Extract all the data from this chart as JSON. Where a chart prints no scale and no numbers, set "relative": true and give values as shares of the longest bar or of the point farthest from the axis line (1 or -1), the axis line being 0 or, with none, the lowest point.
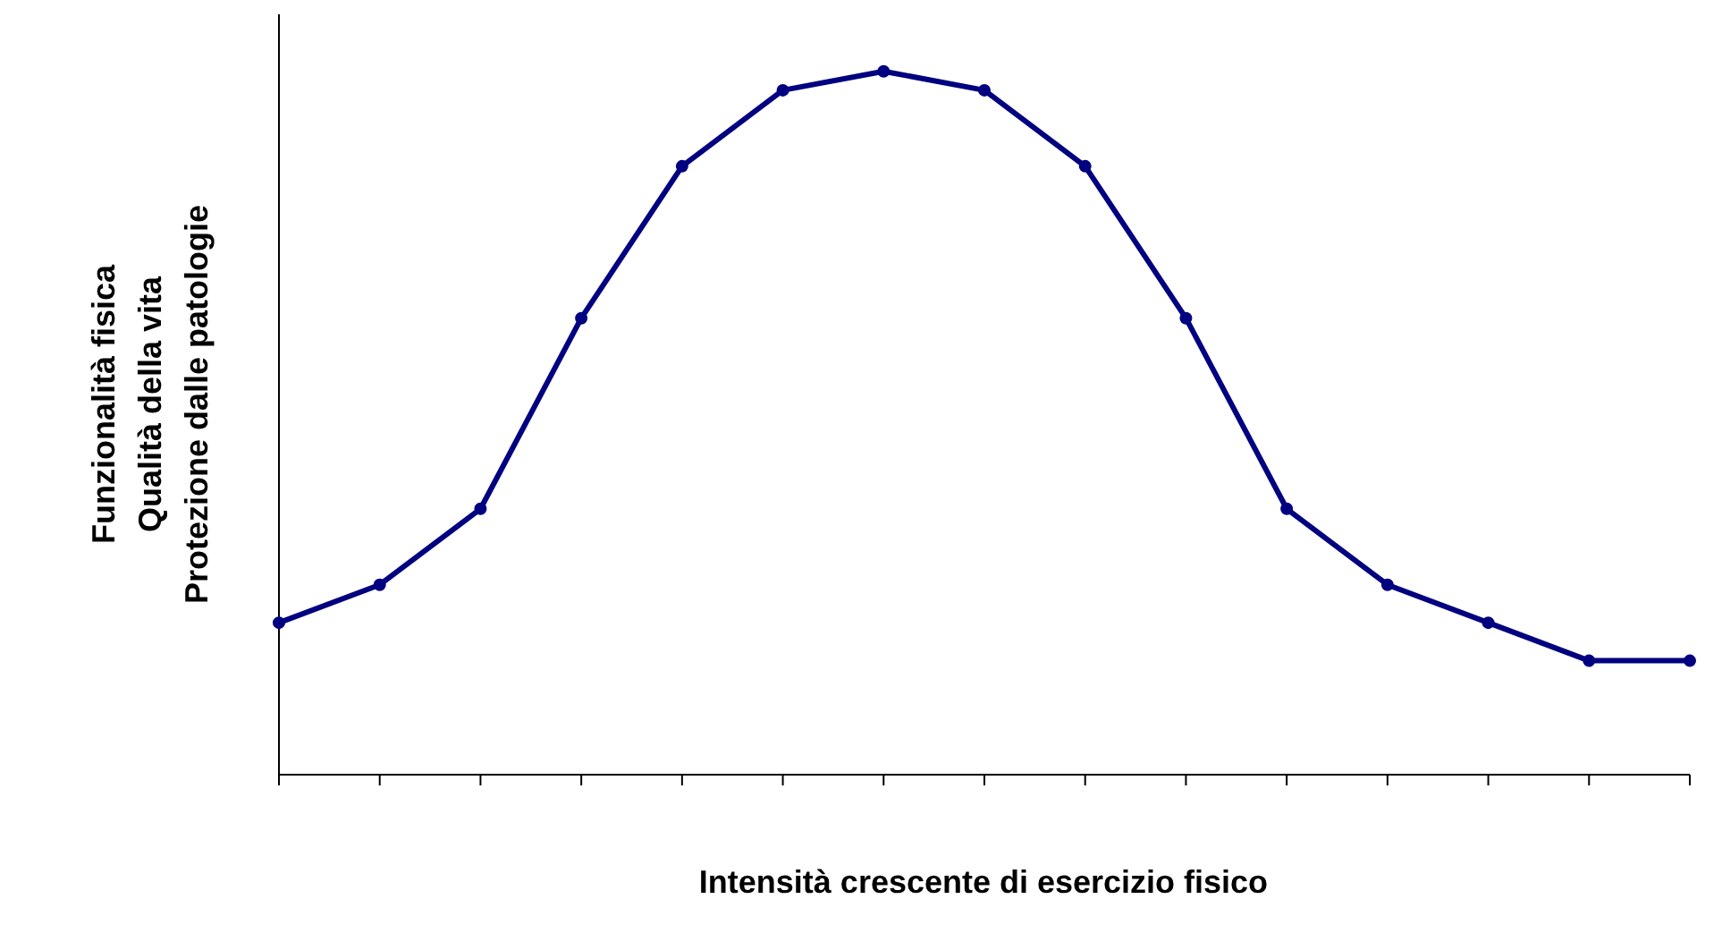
{
  "chart_data": {
    "type": "line",
    "relative": true,
    "xlabel": "Intensità crescente di esercizio fisico",
    "ylabel": "Funzionalità fisica\nQualità della vita\nProtezione dalle patologie",
    "categories": [
      null,
      null,
      null,
      null,
      null,
      null,
      null,
      null,
      null,
      null,
      null,
      null,
      null,
      null,
      null
    ],
    "series": [
      {
        "color": "#000080",
        "values": [
          0.216,
          0.27,
          0.378,
          0.649,
          0.865,
          0.973,
          1,
          0.973,
          0.865,
          0.649,
          0.378,
          0.27,
          0.216,
          0.162,
          0.162
        ]
      }
    ],
    "marker": "circle",
    "grid": false,
    "legend": false
  }
}
